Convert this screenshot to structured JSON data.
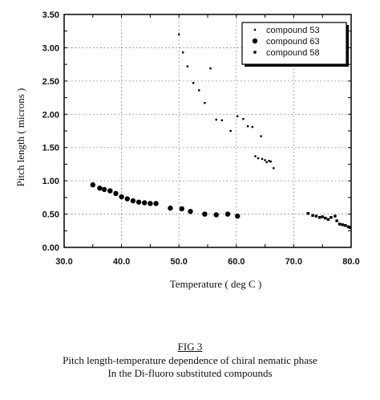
{
  "figure": {
    "label": "FIG 3",
    "caption_line1": "Pitch length-temperature dependence of chiral nematic phase",
    "caption_line2": "In the Di-fluoro substituted compounds"
  },
  "chart_data": {
    "type": "scatter",
    "xlabel": "Temperature ( deg C )",
    "ylabel": "Pitch length ( microns )",
    "xlim": [
      30.0,
      80.0
    ],
    "ylim": [
      0.0,
      3.5
    ],
    "x_ticks": [
      "30.0",
      "40.0",
      "50.0",
      "60.0",
      "70.0",
      "80.0"
    ],
    "y_ticks": [
      "0.00",
      "0.50",
      "1.00",
      "1.50",
      "2.00",
      "2.50",
      "3.00",
      "3.50"
    ],
    "grid": "dotted",
    "legend_position": "top-right",
    "series": [
      {
        "name": "compound 53",
        "marker": "small-square",
        "points": [
          [
            50.0,
            3.2
          ],
          [
            50.7,
            2.93
          ],
          [
            51.5,
            2.72
          ],
          [
            52.5,
            2.47
          ],
          [
            53.5,
            2.36
          ],
          [
            54.5,
            2.17
          ],
          [
            55.5,
            2.69
          ],
          [
            56.5,
            1.92
          ],
          [
            57.5,
            1.91
          ],
          [
            59.0,
            1.75
          ],
          [
            60.2,
            1.97
          ],
          [
            61.2,
            1.93
          ],
          [
            62.0,
            1.82
          ],
          [
            62.8,
            1.81
          ],
          [
            63.3,
            1.37
          ],
          [
            63.8,
            1.34
          ],
          [
            64.3,
            1.67
          ],
          [
            64.5,
            1.33
          ],
          [
            65.0,
            1.31
          ],
          [
            65.3,
            1.28
          ],
          [
            65.7,
            1.3
          ],
          [
            66.0,
            1.29
          ],
          [
            66.5,
            1.19
          ]
        ]
      },
      {
        "name": "compound 63",
        "marker": "circle",
        "points": [
          [
            35.0,
            0.94
          ],
          [
            36.2,
            0.89
          ],
          [
            37.0,
            0.87
          ],
          [
            38.0,
            0.85
          ],
          [
            39.0,
            0.81
          ],
          [
            40.0,
            0.76
          ],
          [
            41.0,
            0.73
          ],
          [
            42.0,
            0.7
          ],
          [
            43.0,
            0.68
          ],
          [
            44.0,
            0.67
          ],
          [
            45.0,
            0.66
          ],
          [
            46.0,
            0.66
          ],
          [
            48.5,
            0.59
          ],
          [
            50.5,
            0.58
          ],
          [
            52.0,
            0.54
          ],
          [
            54.5,
            0.5
          ],
          [
            56.5,
            0.49
          ],
          [
            58.5,
            0.5
          ],
          [
            60.2,
            0.47
          ]
        ]
      },
      {
        "name": "compound 58",
        "marker": "square",
        "points": [
          [
            72.5,
            0.51
          ],
          [
            73.3,
            0.48
          ],
          [
            73.9,
            0.47
          ],
          [
            74.5,
            0.45
          ],
          [
            75.0,
            0.46
          ],
          [
            75.5,
            0.44
          ],
          [
            76.0,
            0.42
          ],
          [
            76.5,
            0.45
          ],
          [
            77.2,
            0.47
          ],
          [
            77.5,
            0.4
          ],
          [
            78.0,
            0.35
          ],
          [
            78.5,
            0.34
          ],
          [
            79.0,
            0.33
          ],
          [
            79.5,
            0.31
          ],
          [
            79.8,
            0.3
          ]
        ]
      }
    ]
  }
}
